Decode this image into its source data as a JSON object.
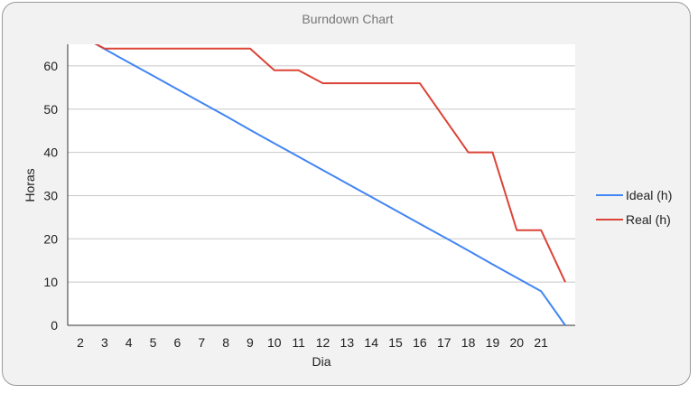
{
  "chart_data": {
    "type": "line",
    "title": "Burndown Chart",
    "xlabel": "Dia",
    "ylabel": "Horas",
    "x_ticks": [
      "2",
      "3",
      "4",
      "5",
      "6",
      "7",
      "8",
      "9",
      "10",
      "11",
      "12",
      "13",
      "14",
      "15",
      "16",
      "17",
      "18",
      "19",
      "20",
      "21"
    ],
    "y_ticks": [
      0,
      10,
      20,
      30,
      40,
      50,
      60
    ],
    "ylim": [
      0,
      65
    ],
    "grid": true,
    "legend_position": "right",
    "series": [
      {
        "name": "Ideal (h)",
        "color": "#4285f4",
        "points": [
          [
            2.5,
            65.5
          ],
          [
            3,
            63.9
          ],
          [
            4,
            60.8
          ],
          [
            5,
            57.7
          ],
          [
            6,
            54.6
          ],
          [
            7,
            51.5
          ],
          [
            8,
            48.4
          ],
          [
            9,
            45.2
          ],
          [
            10,
            42.1
          ],
          [
            11,
            39.0
          ],
          [
            12,
            35.9
          ],
          [
            13,
            32.8
          ],
          [
            14,
            29.7
          ],
          [
            15,
            26.6
          ],
          [
            16,
            23.5
          ],
          [
            17,
            20.4
          ],
          [
            18,
            17.3
          ],
          [
            19,
            14.1
          ],
          [
            20,
            11.0
          ],
          [
            21,
            7.9
          ],
          [
            22,
            0
          ]
        ]
      },
      {
        "name": "Real (h)",
        "color": "#db4437",
        "points": [
          [
            2.5,
            65.5
          ],
          [
            3,
            64
          ],
          [
            9,
            64
          ],
          [
            10,
            59
          ],
          [
            11,
            59
          ],
          [
            12,
            56
          ],
          [
            16,
            56
          ],
          [
            18,
            40
          ],
          [
            19,
            40
          ],
          [
            20,
            22
          ],
          [
            21,
            22
          ],
          [
            22,
            10
          ]
        ]
      }
    ]
  }
}
